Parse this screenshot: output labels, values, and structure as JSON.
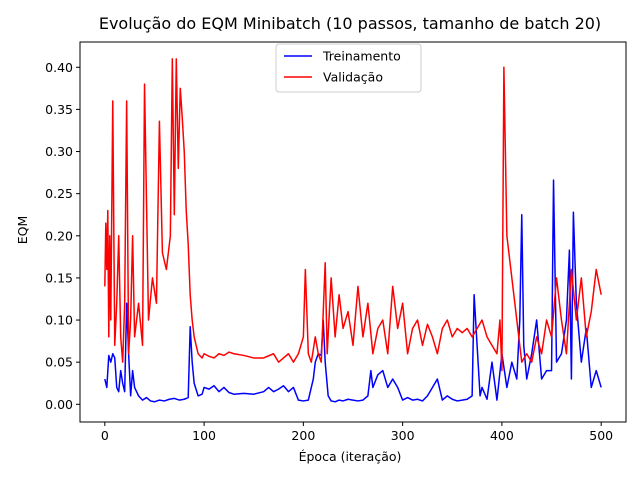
{
  "chart_data": {
    "type": "line",
    "title": "Evolução do EQM Minibatch (10 passos, tamanho de batch 20)",
    "xlabel": "Época (iteração)",
    "ylabel": "EQM",
    "xlim": [
      -25,
      525
    ],
    "ylim": [
      -0.021,
      0.43
    ],
    "xticks": [
      0,
      100,
      200,
      300,
      400,
      500
    ],
    "xtick_labels": [
      "0",
      "100",
      "200",
      "300",
      "400",
      "500"
    ],
    "yticks": [
      0.0,
      0.05,
      0.1,
      0.15,
      0.2,
      0.25,
      0.3,
      0.35,
      0.4
    ],
    "ytick_labels": [
      "0.00",
      "0.05",
      "0.10",
      "0.15",
      "0.20",
      "0.25",
      "0.30",
      "0.35",
      "0.40"
    ],
    "grid": false,
    "legend_position": "top-center",
    "series": [
      {
        "name": "Treinamento",
        "color": "#0000ff",
        "x": [
          0,
          2,
          4,
          6,
          8,
          10,
          12,
          14,
          16,
          18,
          20,
          22,
          24,
          26,
          28,
          30,
          34,
          38,
          42,
          46,
          50,
          55,
          60,
          65,
          70,
          75,
          80,
          84,
          86,
          88,
          90,
          94,
          98,
          100,
          105,
          110,
          115,
          120,
          125,
          130,
          140,
          150,
          160,
          165,
          170,
          175,
          180,
          185,
          190,
          195,
          200,
          205,
          210,
          212,
          215,
          218,
          220,
          222,
          225,
          228,
          232,
          236,
          240,
          245,
          250,
          255,
          260,
          265,
          268,
          270,
          275,
          280,
          285,
          290,
          295,
          300,
          305,
          310,
          315,
          320,
          325,
          330,
          335,
          340,
          345,
          350,
          355,
          360,
          365,
          370,
          372,
          375,
          378,
          380,
          385,
          390,
          395,
          400,
          405,
          410,
          415,
          418,
          420,
          422,
          425,
          430,
          435,
          440,
          445,
          450,
          452,
          455,
          460,
          465,
          468,
          470,
          472,
          475,
          480,
          485,
          490,
          495,
          500
        ],
        "values": [
          0.03,
          0.02,
          0.058,
          0.05,
          0.06,
          0.055,
          0.02,
          0.015,
          0.04,
          0.025,
          0.015,
          0.12,
          0.06,
          0.01,
          0.04,
          0.02,
          0.01,
          0.005,
          0.008,
          0.004,
          0.003,
          0.005,
          0.004,
          0.006,
          0.007,
          0.005,
          0.006,
          0.008,
          0.092,
          0.05,
          0.025,
          0.01,
          0.012,
          0.02,
          0.018,
          0.022,
          0.015,
          0.02,
          0.014,
          0.012,
          0.013,
          0.012,
          0.015,
          0.02,
          0.015,
          0.018,
          0.022,
          0.015,
          0.02,
          0.005,
          0.004,
          0.005,
          0.03,
          0.05,
          0.06,
          0.058,
          0.1,
          0.05,
          0.01,
          0.004,
          0.003,
          0.005,
          0.004,
          0.006,
          0.005,
          0.004,
          0.005,
          0.01,
          0.04,
          0.02,
          0.035,
          0.04,
          0.02,
          0.03,
          0.02,
          0.005,
          0.008,
          0.005,
          0.006,
          0.004,
          0.01,
          0.02,
          0.03,
          0.005,
          0.01,
          0.006,
          0.004,
          0.005,
          0.006,
          0.01,
          0.13,
          0.07,
          0.01,
          0.02,
          0.006,
          0.05,
          0.005,
          0.06,
          0.02,
          0.05,
          0.03,
          0.1,
          0.225,
          0.07,
          0.03,
          0.06,
          0.1,
          0.03,
          0.04,
          0.04,
          0.266,
          0.05,
          0.06,
          0.1,
          0.183,
          0.03,
          0.228,
          0.12,
          0.05,
          0.09,
          0.02,
          0.04,
          0.02
        ]
      },
      {
        "name": "Validação",
        "color": "#ff0000",
        "x": [
          0,
          1,
          2,
          3,
          4,
          5,
          6,
          8,
          10,
          12,
          14,
          16,
          18,
          20,
          22,
          24,
          26,
          28,
          30,
          34,
          38,
          40,
          44,
          48,
          52,
          55,
          58,
          62,
          66,
          68,
          70,
          72,
          74,
          76,
          78,
          80,
          82,
          84,
          86,
          88,
          90,
          94,
          98,
          100,
          105,
          110,
          115,
          120,
          125,
          130,
          140,
          150,
          160,
          170,
          175,
          180,
          185,
          190,
          195,
          200,
          202,
          205,
          208,
          212,
          215,
          218,
          222,
          224,
          228,
          232,
          236,
          240,
          245,
          250,
          255,
          260,
          265,
          270,
          275,
          280,
          285,
          290,
          295,
          300,
          305,
          310,
          315,
          320,
          325,
          330,
          335,
          340,
          345,
          350,
          355,
          360,
          365,
          370,
          375,
          380,
          385,
          390,
          395,
          398,
          400,
          402,
          405,
          410,
          415,
          420,
          425,
          430,
          435,
          440,
          445,
          450,
          455,
          460,
          465,
          470,
          475,
          480,
          485,
          490,
          495,
          500
        ],
        "values": [
          0.14,
          0.215,
          0.16,
          0.23,
          0.08,
          0.2,
          0.1,
          0.36,
          0.07,
          0.12,
          0.2,
          0.08,
          0.05,
          0.12,
          0.36,
          0.06,
          0.1,
          0.2,
          0.08,
          0.12,
          0.07,
          0.38,
          0.1,
          0.15,
          0.12,
          0.336,
          0.18,
          0.16,
          0.2,
          0.41,
          0.225,
          0.41,
          0.28,
          0.375,
          0.34,
          0.3,
          0.23,
          0.19,
          0.13,
          0.1,
          0.08,
          0.06,
          0.055,
          0.06,
          0.057,
          0.055,
          0.06,
          0.058,
          0.062,
          0.06,
          0.058,
          0.055,
          0.055,
          0.06,
          0.05,
          0.055,
          0.06,
          0.05,
          0.06,
          0.08,
          0.16,
          0.06,
          0.05,
          0.08,
          0.06,
          0.05,
          0.168,
          0.06,
          0.15,
          0.08,
          0.13,
          0.09,
          0.11,
          0.07,
          0.14,
          0.08,
          0.12,
          0.06,
          0.09,
          0.1,
          0.06,
          0.14,
          0.09,
          0.12,
          0.06,
          0.09,
          0.1,
          0.07,
          0.095,
          0.08,
          0.06,
          0.09,
          0.1,
          0.08,
          0.09,
          0.085,
          0.09,
          0.08,
          0.09,
          0.1,
          0.08,
          0.07,
          0.06,
          0.1,
          0.04,
          0.4,
          0.2,
          0.15,
          0.1,
          0.05,
          0.06,
          0.05,
          0.08,
          0.06,
          0.1,
          0.08,
          0.15,
          0.1,
          0.06,
          0.16,
          0.1,
          0.15,
          0.08,
          0.11,
          0.16,
          0.13
        ]
      }
    ]
  }
}
